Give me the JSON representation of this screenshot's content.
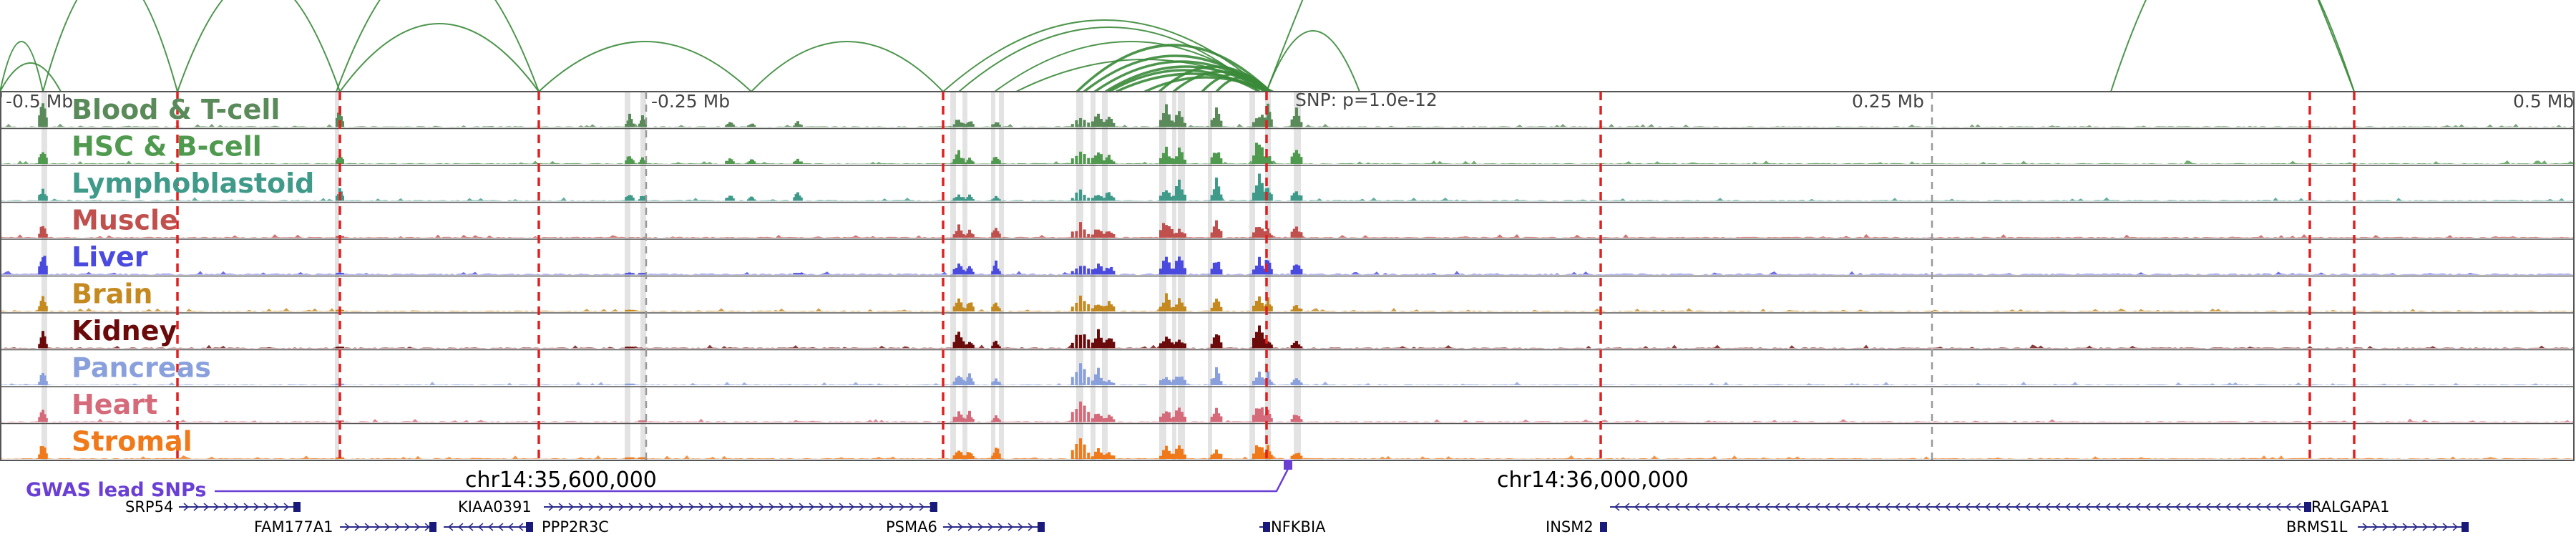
{
  "axis": {
    "ticks": [
      "-0.5 Mb",
      "-0.25 Mb",
      "0.25 Mb",
      "0.5 Mb"
    ],
    "snp_label": "SNP: p=1.0e-12",
    "chr_labels": [
      "chr14:35,600,000",
      "chr14:36,000,000"
    ]
  },
  "tracks": [
    {
      "name": "Blood & T-cell",
      "color": "#5a8a5a"
    },
    {
      "name": "HSC & B-cell",
      "color": "#4f9a4f"
    },
    {
      "name": "Lymphoblastoid",
      "color": "#3f9a8a"
    },
    {
      "name": "Muscle",
      "color": "#c0504d"
    },
    {
      "name": "Liver",
      "color": "#4a4adf"
    },
    {
      "name": "Brain",
      "color": "#c48a20"
    },
    {
      "name": "Kidney",
      "color": "#6b0a0a"
    },
    {
      "name": "Pancreas",
      "color": "#8aa0dc"
    },
    {
      "name": "Heart",
      "color": "#d46a7a"
    },
    {
      "name": "Stromal",
      "color": "#f07a1a"
    }
  ],
  "gwas": {
    "title": "GWAS lead SNPs",
    "color": "#6a3fd4"
  },
  "genes_row1": [
    "SRP54",
    "KIAA0391",
    "RALGAPA1"
  ],
  "genes_row2": [
    "FAM177A1",
    "PPP2R3C",
    "PSMA6",
    "NFKBIA",
    "INSM2",
    "BRMS1L"
  ],
  "colors": {
    "arc": "#3a8a3a",
    "divider_red": "#e02020",
    "highlight": "#cccccc"
  }
}
